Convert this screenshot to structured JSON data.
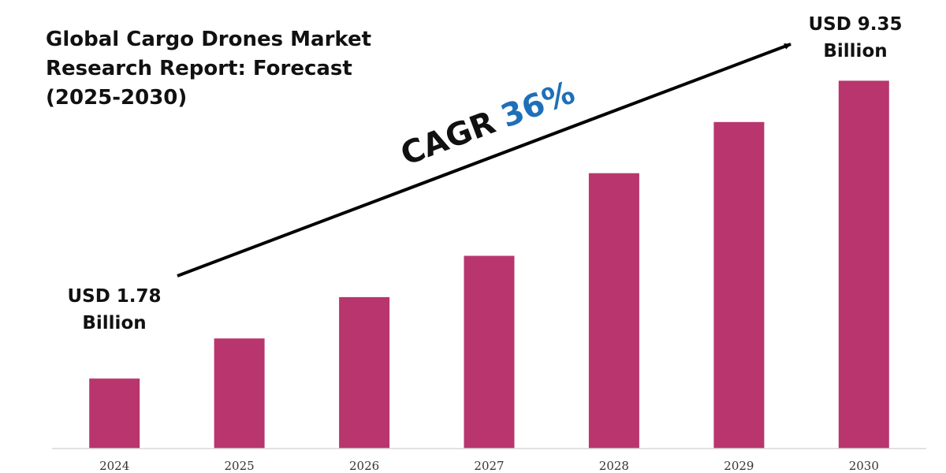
{
  "title": "Global Cargo Drones Market Research Report: Forecast (2025-2030)",
  "callouts": {
    "start_line1": "USD 1.78",
    "start_line2": "Billion",
    "end_line1": "USD 9.35",
    "end_line2": "Billion"
  },
  "cagr": {
    "label": "CAGR",
    "value": "36%",
    "label_color": "#111111",
    "value_color": "#1f6fb8"
  },
  "colors": {
    "bar": "#b8366d",
    "axis": "#d9d9d9",
    "arrow": "#000000"
  },
  "chart_data": {
    "type": "bar",
    "categories": [
      "2024",
      "2025",
      "2026",
      "2027",
      "2028",
      "2029",
      "2030"
    ],
    "series": [
      {
        "values": [
          1.78,
          2.8,
          3.85,
          4.9,
          7.0,
          8.3,
          9.35
        ]
      }
    ],
    "title": "Global Cargo Drones Market Research Report: Forecast (2025-2030)",
    "xlabel": "",
    "ylabel": "",
    "unit": "USD Billion",
    "ylim": [
      0,
      10.6
    ],
    "grid": false,
    "legend": "none",
    "annotations": [
      "USD 1.78 Billion",
      "USD 9.35 Billion",
      "CAGR 36%"
    ]
  }
}
